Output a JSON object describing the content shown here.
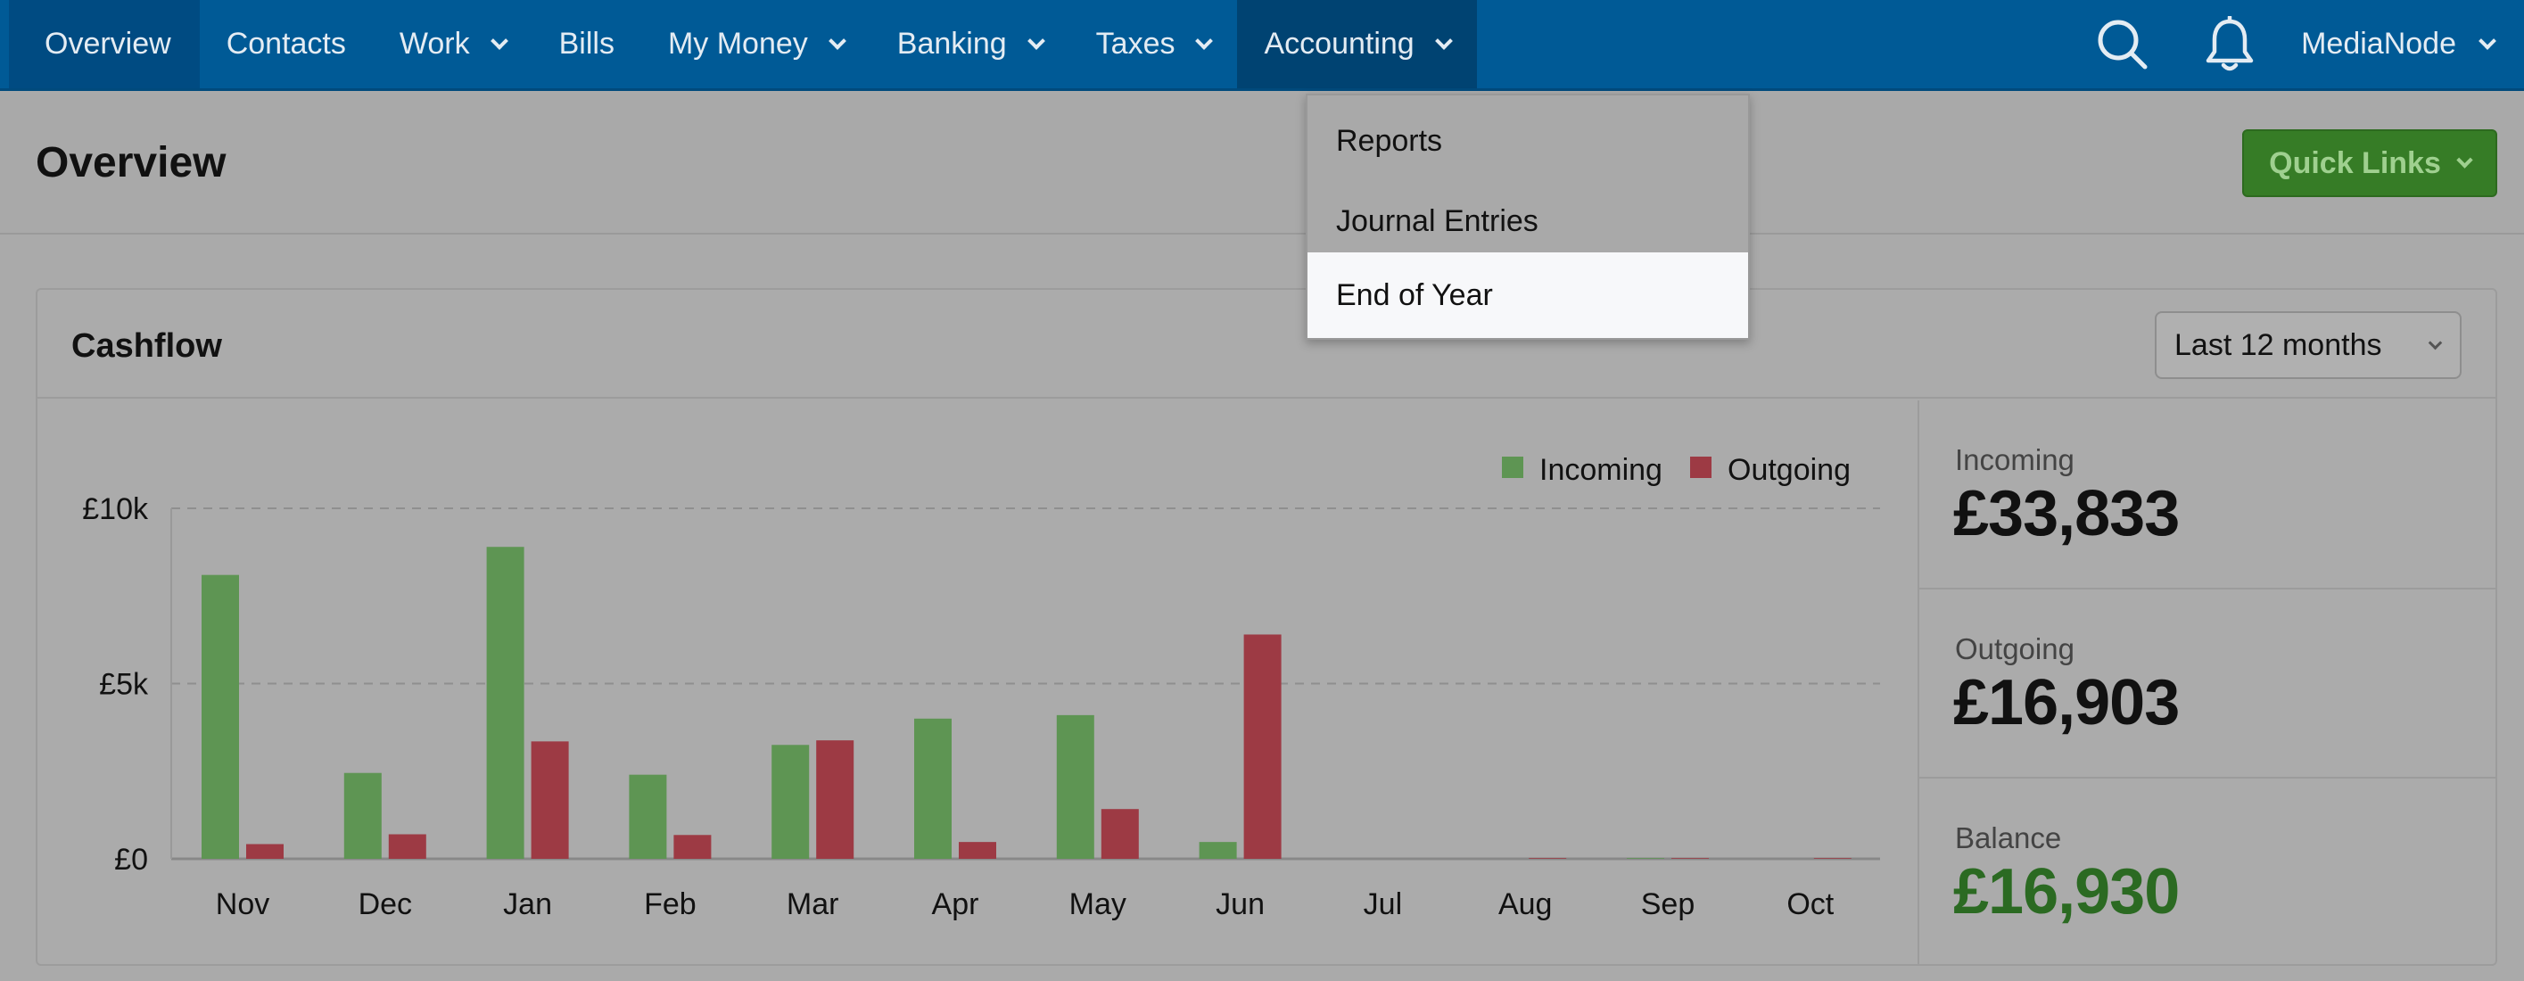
{
  "nav": {
    "items": [
      {
        "label": "Overview",
        "has_menu": false
      },
      {
        "label": "Contacts",
        "has_menu": false
      },
      {
        "label": "Work",
        "has_menu": true
      },
      {
        "label": "Bills",
        "has_menu": false
      },
      {
        "label": "My Money",
        "has_menu": true
      },
      {
        "label": "Banking",
        "has_menu": true
      },
      {
        "label": "Taxes",
        "has_menu": true
      },
      {
        "label": "Accounting",
        "has_menu": true
      }
    ],
    "search_icon": "search-icon",
    "bell_icon": "bell-icon",
    "user": "MediaNode"
  },
  "accounting_menu": {
    "items": [
      "Reports",
      "Journal Entries",
      "End of Year"
    ],
    "highlighted": "End of Year"
  },
  "page": {
    "title": "Overview",
    "quick_links_label": "Quick Links"
  },
  "cashflow": {
    "title": "Cashflow",
    "range": "Last 12 months",
    "stats": {
      "incoming_label": "Incoming",
      "incoming_value": "£33,833",
      "outgoing_label": "Outgoing",
      "outgoing_value": "£16,903",
      "balance_label": "Balance",
      "balance_value": "£16,930"
    }
  },
  "colors": {
    "nav_bg": "#005a96",
    "incoming": "#5e9553",
    "outgoing": "#9d3a44",
    "balance": "#2b6a22",
    "quick_links": "#367c26"
  },
  "chart_data": {
    "type": "bar",
    "categories": [
      "Nov",
      "Dec",
      "Jan",
      "Feb",
      "Mar",
      "Apr",
      "May",
      "Jun",
      "Jul",
      "Aug",
      "Sep",
      "Oct"
    ],
    "series": [
      {
        "name": "Incoming",
        "values": [
          8100,
          2450,
          8900,
          2400,
          3250,
          4000,
          4100,
          480,
          0,
          0,
          20,
          0
        ]
      },
      {
        "name": "Outgoing",
        "values": [
          420,
          700,
          3350,
          680,
          3380,
          480,
          1420,
          6400,
          0,
          20,
          20,
          20
        ]
      }
    ],
    "ylim": [
      0,
      10000
    ],
    "yticks": [
      0,
      5000,
      10000
    ],
    "ytick_labels": [
      "£0",
      "£5k",
      "£10k"
    ],
    "grid": true,
    "legend": "top-right"
  }
}
